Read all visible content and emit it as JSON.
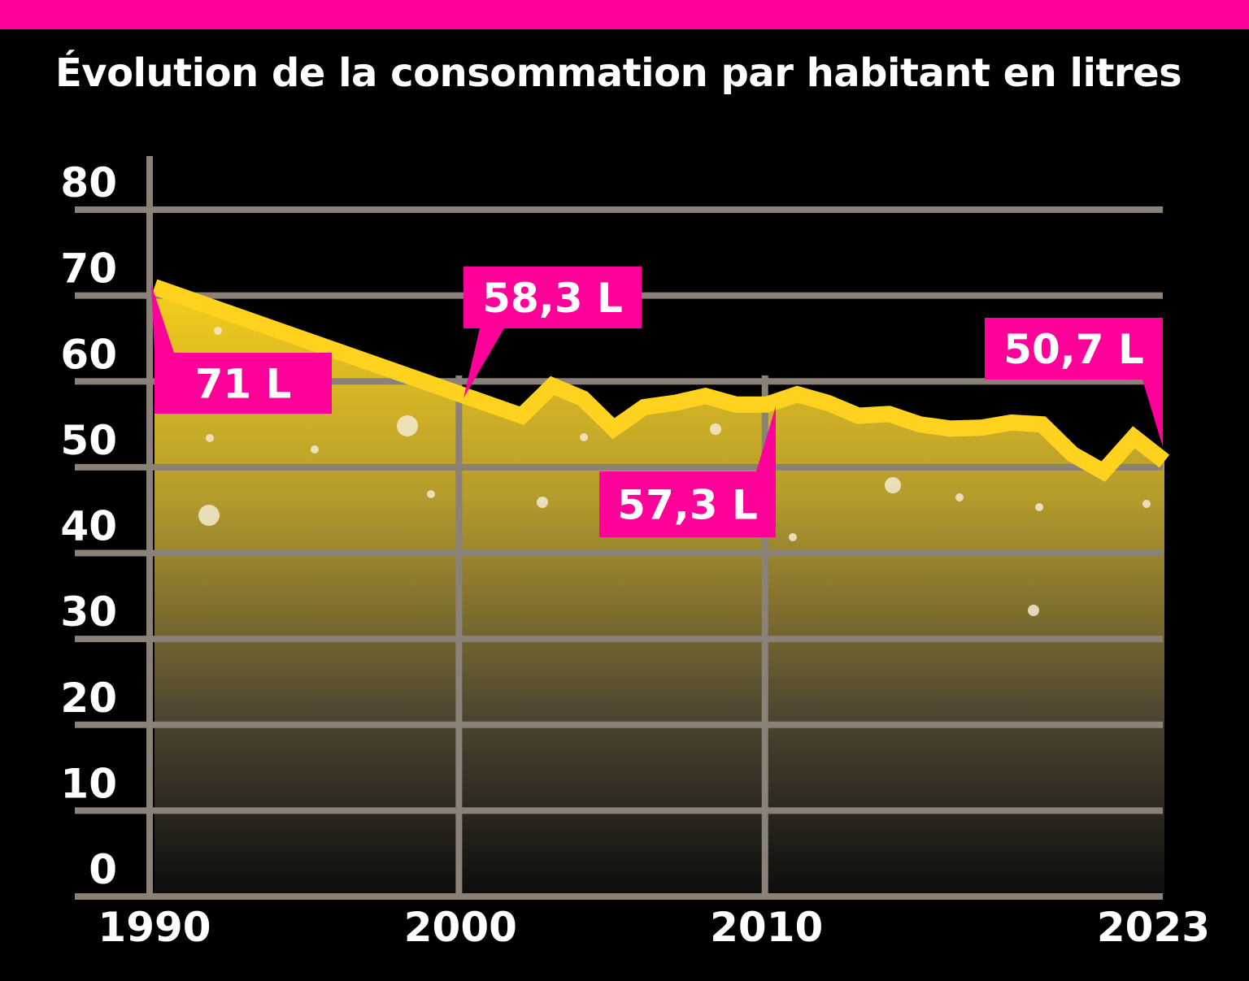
{
  "colors": {
    "background": "#000000",
    "accent": "#ff0099",
    "line": "#ffd21f",
    "area_top": "#f5cf1c",
    "grid": "#8a8178",
    "text": "#ffffff"
  },
  "chart_data": {
    "type": "area",
    "title": "Évolution de la consommation par habitant en litres",
    "xlabel": "",
    "ylabel": "",
    "xlim": [
      1990,
      2023
    ],
    "ylim": [
      0,
      80
    ],
    "y_ticks": [
      0,
      10,
      20,
      30,
      40,
      50,
      60,
      70,
      80
    ],
    "x_ticks": [
      1990,
      2000,
      2010,
      2023
    ],
    "grid": true,
    "legend": "none",
    "x": [
      1990,
      2002,
      2003,
      2004,
      2005,
      2006,
      2007,
      2008,
      2009,
      2010,
      2011,
      2012,
      2013,
      2014,
      2015,
      2016,
      2017,
      2018,
      2019,
      2020,
      2021,
      2022,
      2023
    ],
    "values": [
      71,
      56.0,
      59.5,
      58.0,
      54.5,
      57.0,
      57.5,
      58.3,
      57.3,
      57.3,
      58.5,
      57.5,
      56.0,
      56.2,
      55.0,
      54.5,
      54.6,
      55.2,
      55.0,
      51.5,
      49.5,
      53.5,
      50.7
    ],
    "annotations": [
      {
        "label": "71 L",
        "x": 1990,
        "y": 71
      },
      {
        "label": "58,3 L",
        "x": 2000,
        "y": 58.3
      },
      {
        "label": "57,3 L",
        "x": 2010,
        "y": 57.3
      },
      {
        "label": "50,7 L",
        "x": 2023,
        "y": 50.7
      }
    ]
  }
}
